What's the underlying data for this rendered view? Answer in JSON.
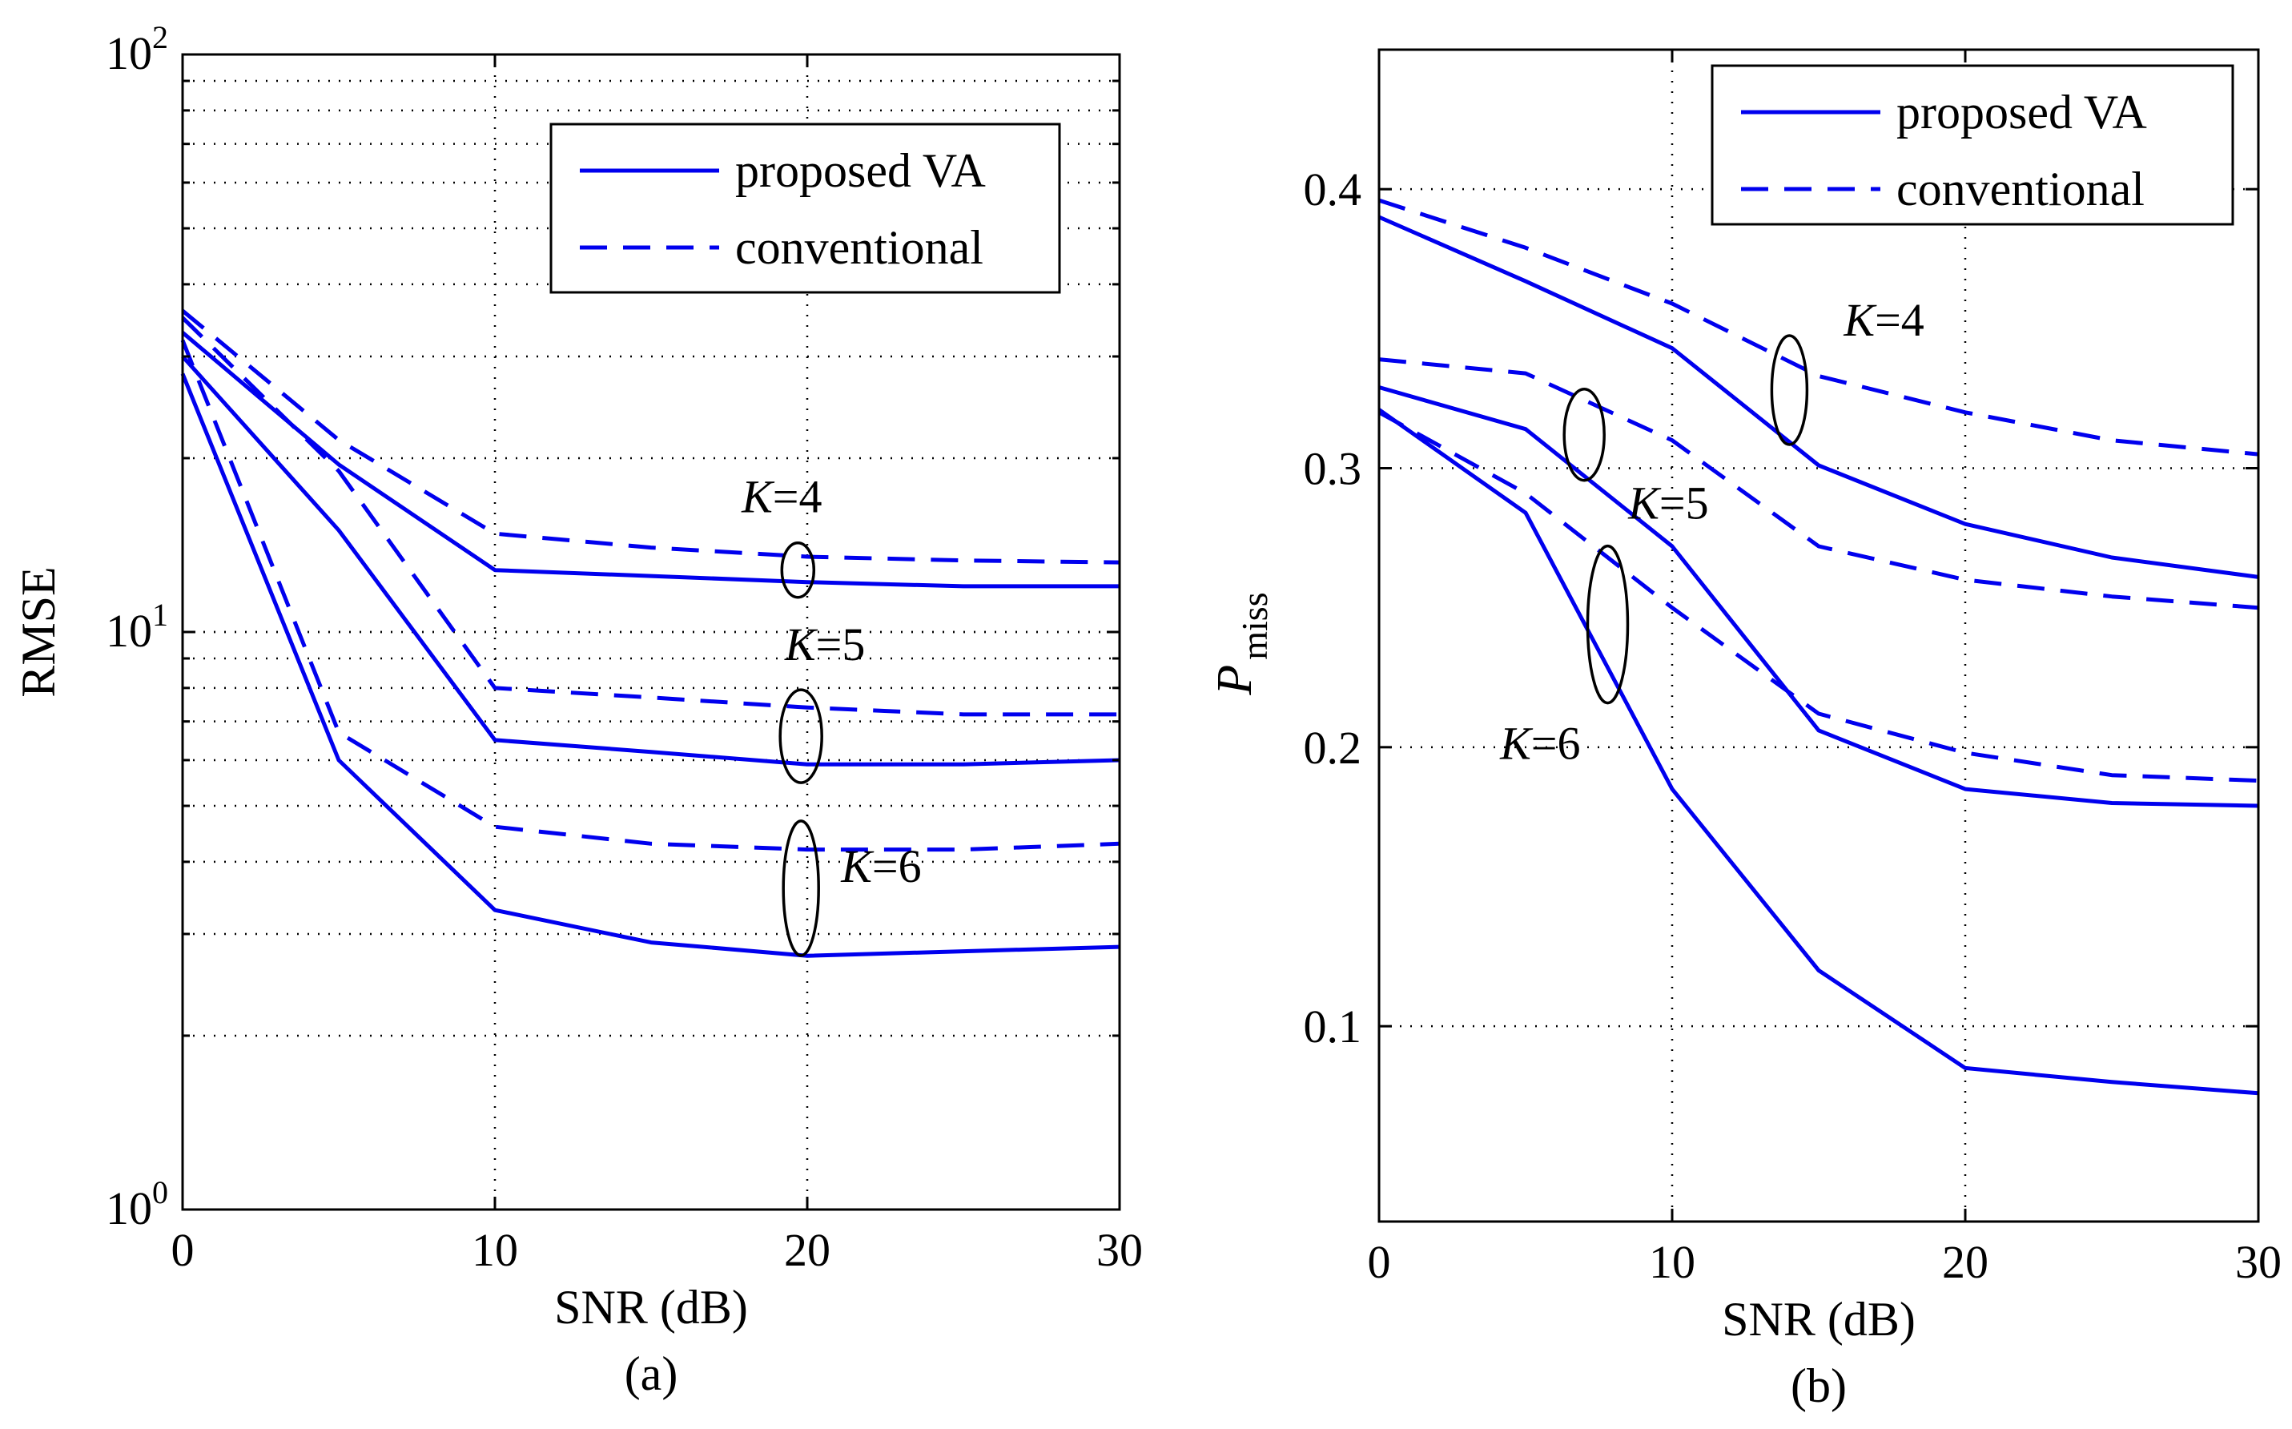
{
  "chart_data": [
    {
      "type": "line",
      "panel_label": "(a)",
      "xlabel": "SNR (dB)",
      "ylabel": "RMSE",
      "xlim": [
        0,
        30
      ],
      "ylim": [
        1,
        100
      ],
      "yscale": "log",
      "grid": true,
      "x_ticks": [
        0,
        10,
        20,
        30
      ],
      "x_tick_labels": [
        "0",
        "10",
        "20",
        "30"
      ],
      "y_ticks": [
        {
          "value": 1,
          "base": "10",
          "exp": "0"
        },
        {
          "value": 10,
          "base": "10",
          "exp": "1"
        },
        {
          "value": 100,
          "base": "10",
          "exp": "2"
        }
      ],
      "legend": {
        "position": "top-right",
        "entries": [
          {
            "label": "proposed VA",
            "style": "solid"
          },
          {
            "label": "conventional",
            "style": "dashed"
          }
        ]
      },
      "series": [
        {
          "group": "K=4",
          "style": "solid",
          "color": "#0000ee",
          "x": [
            0,
            5,
            10,
            15,
            20,
            25,
            30
          ],
          "y": [
            33,
            19.5,
            12.8,
            12.5,
            12.2,
            12.0,
            12.0
          ]
        },
        {
          "group": "K=4",
          "style": "dashed",
          "color": "#0000ee",
          "x": [
            0,
            5,
            10,
            15,
            20,
            25,
            30
          ],
          "y": [
            36,
            21.5,
            14.8,
            14.0,
            13.5,
            13.3,
            13.2
          ]
        },
        {
          "group": "K=5",
          "style": "solid",
          "color": "#0000ee",
          "x": [
            0,
            5,
            10,
            15,
            20,
            25,
            30
          ],
          "y": [
            30,
            15,
            6.5,
            6.2,
            5.9,
            5.9,
            6.0
          ]
        },
        {
          "group": "K=5",
          "style": "dashed",
          "color": "#0000ee",
          "x": [
            0,
            5,
            10,
            15,
            20,
            25,
            30
          ],
          "y": [
            35,
            19,
            8.0,
            7.7,
            7.4,
            7.2,
            7.2
          ]
        },
        {
          "group": "K=6",
          "style": "solid",
          "color": "#0000ee",
          "x": [
            0,
            5,
            10,
            15,
            20,
            25,
            30
          ],
          "y": [
            28,
            6.0,
            3.3,
            2.9,
            2.75,
            2.8,
            2.85
          ]
        },
        {
          "group": "K=6",
          "style": "dashed",
          "color": "#0000ee",
          "x": [
            0,
            5,
            10,
            15,
            20,
            25,
            30
          ],
          "y": [
            32,
            6.7,
            4.6,
            4.3,
            4.2,
            4.2,
            4.3
          ]
        }
      ],
      "annotations": [
        {
          "label": "K",
          "suffix": "=4",
          "x": 19.7,
          "y": 12.8
        },
        {
          "label": "K",
          "suffix": "=5",
          "x": 19.8,
          "y": 6.6
        },
        {
          "label": "K",
          "suffix": "=6",
          "x": 19.8,
          "y": 3.6
        }
      ]
    },
    {
      "type": "line",
      "panel_label": "(b)",
      "xlabel": "SNR (dB)",
      "ylabel_main": "P",
      "ylabel_sub": "miss",
      "xlim": [
        0,
        30
      ],
      "ylim": [
        0.03,
        0.45
      ],
      "yscale": "linear",
      "grid": true,
      "x_ticks": [
        0,
        10,
        20,
        30
      ],
      "x_tick_labels": [
        "0",
        "10",
        "20",
        "30"
      ],
      "y_ticks": [
        0.1,
        0.2,
        0.3,
        0.4
      ],
      "y_tick_labels": [
        "0.1",
        "0.2",
        "0.3",
        "0.4"
      ],
      "legend": {
        "position": "top-right",
        "entries": [
          {
            "label": "proposed VA",
            "style": "solid"
          },
          {
            "label": "conventional",
            "style": "dashed"
          }
        ]
      },
      "series": [
        {
          "group": "K=4",
          "style": "solid",
          "color": "#0000ee",
          "x": [
            0,
            5,
            10,
            15,
            20,
            25,
            30
          ],
          "y": [
            0.39,
            0.367,
            0.343,
            0.301,
            0.28,
            0.268,
            0.261
          ]
        },
        {
          "group": "K=4",
          "style": "dashed",
          "color": "#0000ee",
          "x": [
            0,
            5,
            10,
            15,
            20,
            25,
            30
          ],
          "y": [
            0.396,
            0.379,
            0.359,
            0.333,
            0.32,
            0.31,
            0.305
          ]
        },
        {
          "group": "K=5",
          "style": "solid",
          "color": "#0000ee",
          "x": [
            0,
            5,
            10,
            15,
            20,
            25,
            30
          ],
          "y": [
            0.329,
            0.314,
            0.272,
            0.206,
            0.185,
            0.18,
            0.179
          ]
        },
        {
          "group": "K=5",
          "style": "dashed",
          "color": "#0000ee",
          "x": [
            0,
            5,
            10,
            15,
            20,
            25,
            30
          ],
          "y": [
            0.339,
            0.334,
            0.31,
            0.272,
            0.26,
            0.254,
            0.25
          ]
        },
        {
          "group": "K=6",
          "style": "solid",
          "color": "#0000ee",
          "x": [
            0,
            5,
            10,
            15,
            20,
            25,
            30
          ],
          "y": [
            0.321,
            0.284,
            0.185,
            0.12,
            0.085,
            0.08,
            0.076
          ]
        },
        {
          "group": "K=6",
          "style": "dashed",
          "color": "#0000ee",
          "x": [
            0,
            5,
            10,
            15,
            20,
            25,
            30
          ],
          "y": [
            0.32,
            0.291,
            0.25,
            0.212,
            0.198,
            0.19,
            0.188
          ]
        }
      ],
      "annotations": [
        {
          "label": "K",
          "suffix": "=4",
          "x": 14,
          "y": 0.328
        },
        {
          "label": "K",
          "suffix": "=5",
          "x": 7,
          "y": 0.312
        },
        {
          "label": "K",
          "suffix": "=6",
          "x": 7.8,
          "y": 0.244
        }
      ]
    }
  ]
}
